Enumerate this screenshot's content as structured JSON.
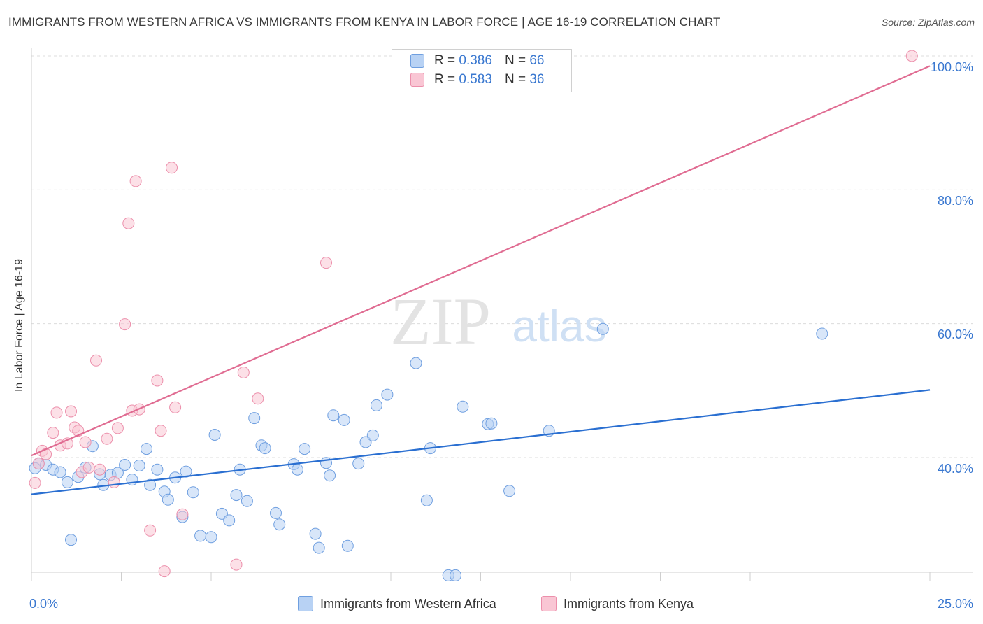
{
  "header": {
    "title": "IMMIGRANTS FROM WESTERN AFRICA VS IMMIGRANTS FROM KENYA IN LABOR FORCE | AGE 16-19 CORRELATION CHART",
    "source": "Source: ZipAtlas.com"
  },
  "watermark": {
    "zip": "ZIP",
    "atlas": "atlas"
  },
  "legend_top": {
    "rows": [
      {
        "r_label": "R =",
        "r_value": "0.386",
        "n_label": "N =",
        "n_value": "66"
      },
      {
        "r_label": "R =",
        "r_value": "0.583",
        "n_label": "N =",
        "n_value": "36"
      }
    ]
  },
  "legend_bottom": {
    "items": [
      "Immigrants from Western Africa",
      "Immigrants from Kenya"
    ]
  },
  "axes": {
    "ylabel": "In Labor Force | Age 16-19",
    "x_ticks": [
      "0.0%",
      "25.0%"
    ],
    "y_ticks": [
      "40.0%",
      "60.0%",
      "80.0%",
      "100.0%"
    ]
  },
  "colors": {
    "blue_fill": "#b8d2f4",
    "blue_stroke": "#6f9fe0",
    "blue_line": "#2a6fd1",
    "pink_fill": "#f9c6d4",
    "pink_stroke": "#ec8fab",
    "pink_line": "#e06c92"
  },
  "chart_data": {
    "type": "scatter",
    "xlim": [
      0,
      25
    ],
    "ylim": [
      20,
      102
    ],
    "y_ticks": [
      40,
      60,
      80,
      100
    ],
    "grid": true,
    "legend": "top-center",
    "series": [
      {
        "name": "Immigrants from Western Africa",
        "color": "#6f9fe0",
        "trend": {
          "x": [
            0,
            25
          ],
          "y": [
            34.5,
            50.1
          ]
        },
        "points": [
          [
            0.2,
            39.1
          ],
          [
            0.4,
            38.9
          ],
          [
            0.6,
            38.2
          ],
          [
            0.8,
            37.8
          ],
          [
            1.0,
            36.3
          ],
          [
            1.1,
            27.7
          ],
          [
            1.3,
            37.1
          ],
          [
            1.5,
            38.5
          ],
          [
            1.7,
            41.7
          ],
          [
            1.9,
            37.5
          ],
          [
            2.0,
            35.9
          ],
          [
            2.2,
            37.4
          ],
          [
            2.4,
            37.7
          ],
          [
            2.6,
            38.9
          ],
          [
            2.8,
            36.7
          ],
          [
            3.0,
            38.8
          ],
          [
            3.2,
            41.3
          ],
          [
            3.3,
            35.9
          ],
          [
            3.5,
            38.2
          ],
          [
            3.7,
            34.9
          ],
          [
            3.8,
            33.7
          ],
          [
            4.0,
            37.0
          ],
          [
            4.2,
            31.1
          ],
          [
            4.3,
            37.9
          ],
          [
            4.5,
            34.8
          ],
          [
            4.7,
            28.3
          ],
          [
            5.0,
            28.1
          ],
          [
            5.1,
            43.4
          ],
          [
            5.3,
            31.6
          ],
          [
            5.5,
            30.6
          ],
          [
            5.7,
            34.4
          ],
          [
            5.8,
            38.2
          ],
          [
            6.0,
            33.5
          ],
          [
            6.2,
            45.9
          ],
          [
            6.4,
            41.8
          ],
          [
            6.5,
            41.4
          ],
          [
            6.8,
            31.7
          ],
          [
            6.9,
            30.0
          ],
          [
            7.3,
            39.0
          ],
          [
            7.4,
            38.2
          ],
          [
            7.6,
            41.3
          ],
          [
            7.9,
            28.6
          ],
          [
            8.0,
            26.5
          ],
          [
            8.2,
            39.2
          ],
          [
            8.3,
            37.3
          ],
          [
            8.4,
            46.3
          ],
          [
            8.7,
            45.6
          ],
          [
            8.8,
            26.8
          ],
          [
            9.1,
            39.1
          ],
          [
            9.3,
            42.3
          ],
          [
            9.5,
            43.3
          ],
          [
            9.6,
            47.8
          ],
          [
            9.9,
            49.4
          ],
          [
            10.7,
            54.1
          ],
          [
            11.0,
            33.6
          ],
          [
            11.1,
            41.4
          ],
          [
            11.6,
            22.4
          ],
          [
            11.8,
            22.4
          ],
          [
            12.0,
            47.6
          ],
          [
            12.7,
            45.0
          ],
          [
            12.8,
            45.1
          ],
          [
            13.3,
            35.0
          ],
          [
            14.4,
            44.0
          ],
          [
            15.9,
            59.2
          ],
          [
            22.0,
            58.5
          ],
          [
            0.1,
            38.4
          ]
        ]
      },
      {
        "name": "Immigrants from Kenya",
        "color": "#ec8fab",
        "trend": {
          "x": [
            0,
            25
          ],
          "y": [
            40.3,
            98.5
          ]
        },
        "points": [
          [
            0.1,
            36.2
          ],
          [
            0.2,
            39.1
          ],
          [
            0.3,
            41.0
          ],
          [
            0.4,
            40.5
          ],
          [
            0.6,
            43.7
          ],
          [
            0.7,
            46.7
          ],
          [
            0.8,
            41.8
          ],
          [
            1.0,
            42.1
          ],
          [
            1.1,
            46.9
          ],
          [
            1.2,
            44.5
          ],
          [
            1.3,
            44.0
          ],
          [
            1.4,
            37.8
          ],
          [
            1.5,
            42.3
          ],
          [
            1.6,
            38.5
          ],
          [
            1.8,
            54.5
          ],
          [
            1.9,
            38.2
          ],
          [
            2.1,
            42.8
          ],
          [
            2.3,
            36.3
          ],
          [
            2.4,
            44.4
          ],
          [
            2.6,
            59.9
          ],
          [
            2.7,
            75.0
          ],
          [
            2.8,
            47.0
          ],
          [
            2.9,
            81.3
          ],
          [
            3.0,
            47.2
          ],
          [
            3.3,
            29.1
          ],
          [
            3.5,
            51.5
          ],
          [
            3.6,
            44.0
          ],
          [
            3.7,
            23.0
          ],
          [
            3.9,
            83.3
          ],
          [
            4.0,
            47.5
          ],
          [
            4.2,
            31.5
          ],
          [
            5.7,
            24.0
          ],
          [
            5.9,
            52.7
          ],
          [
            6.3,
            48.8
          ],
          [
            8.2,
            69.1
          ],
          [
            24.5,
            100.0
          ]
        ]
      }
    ]
  }
}
